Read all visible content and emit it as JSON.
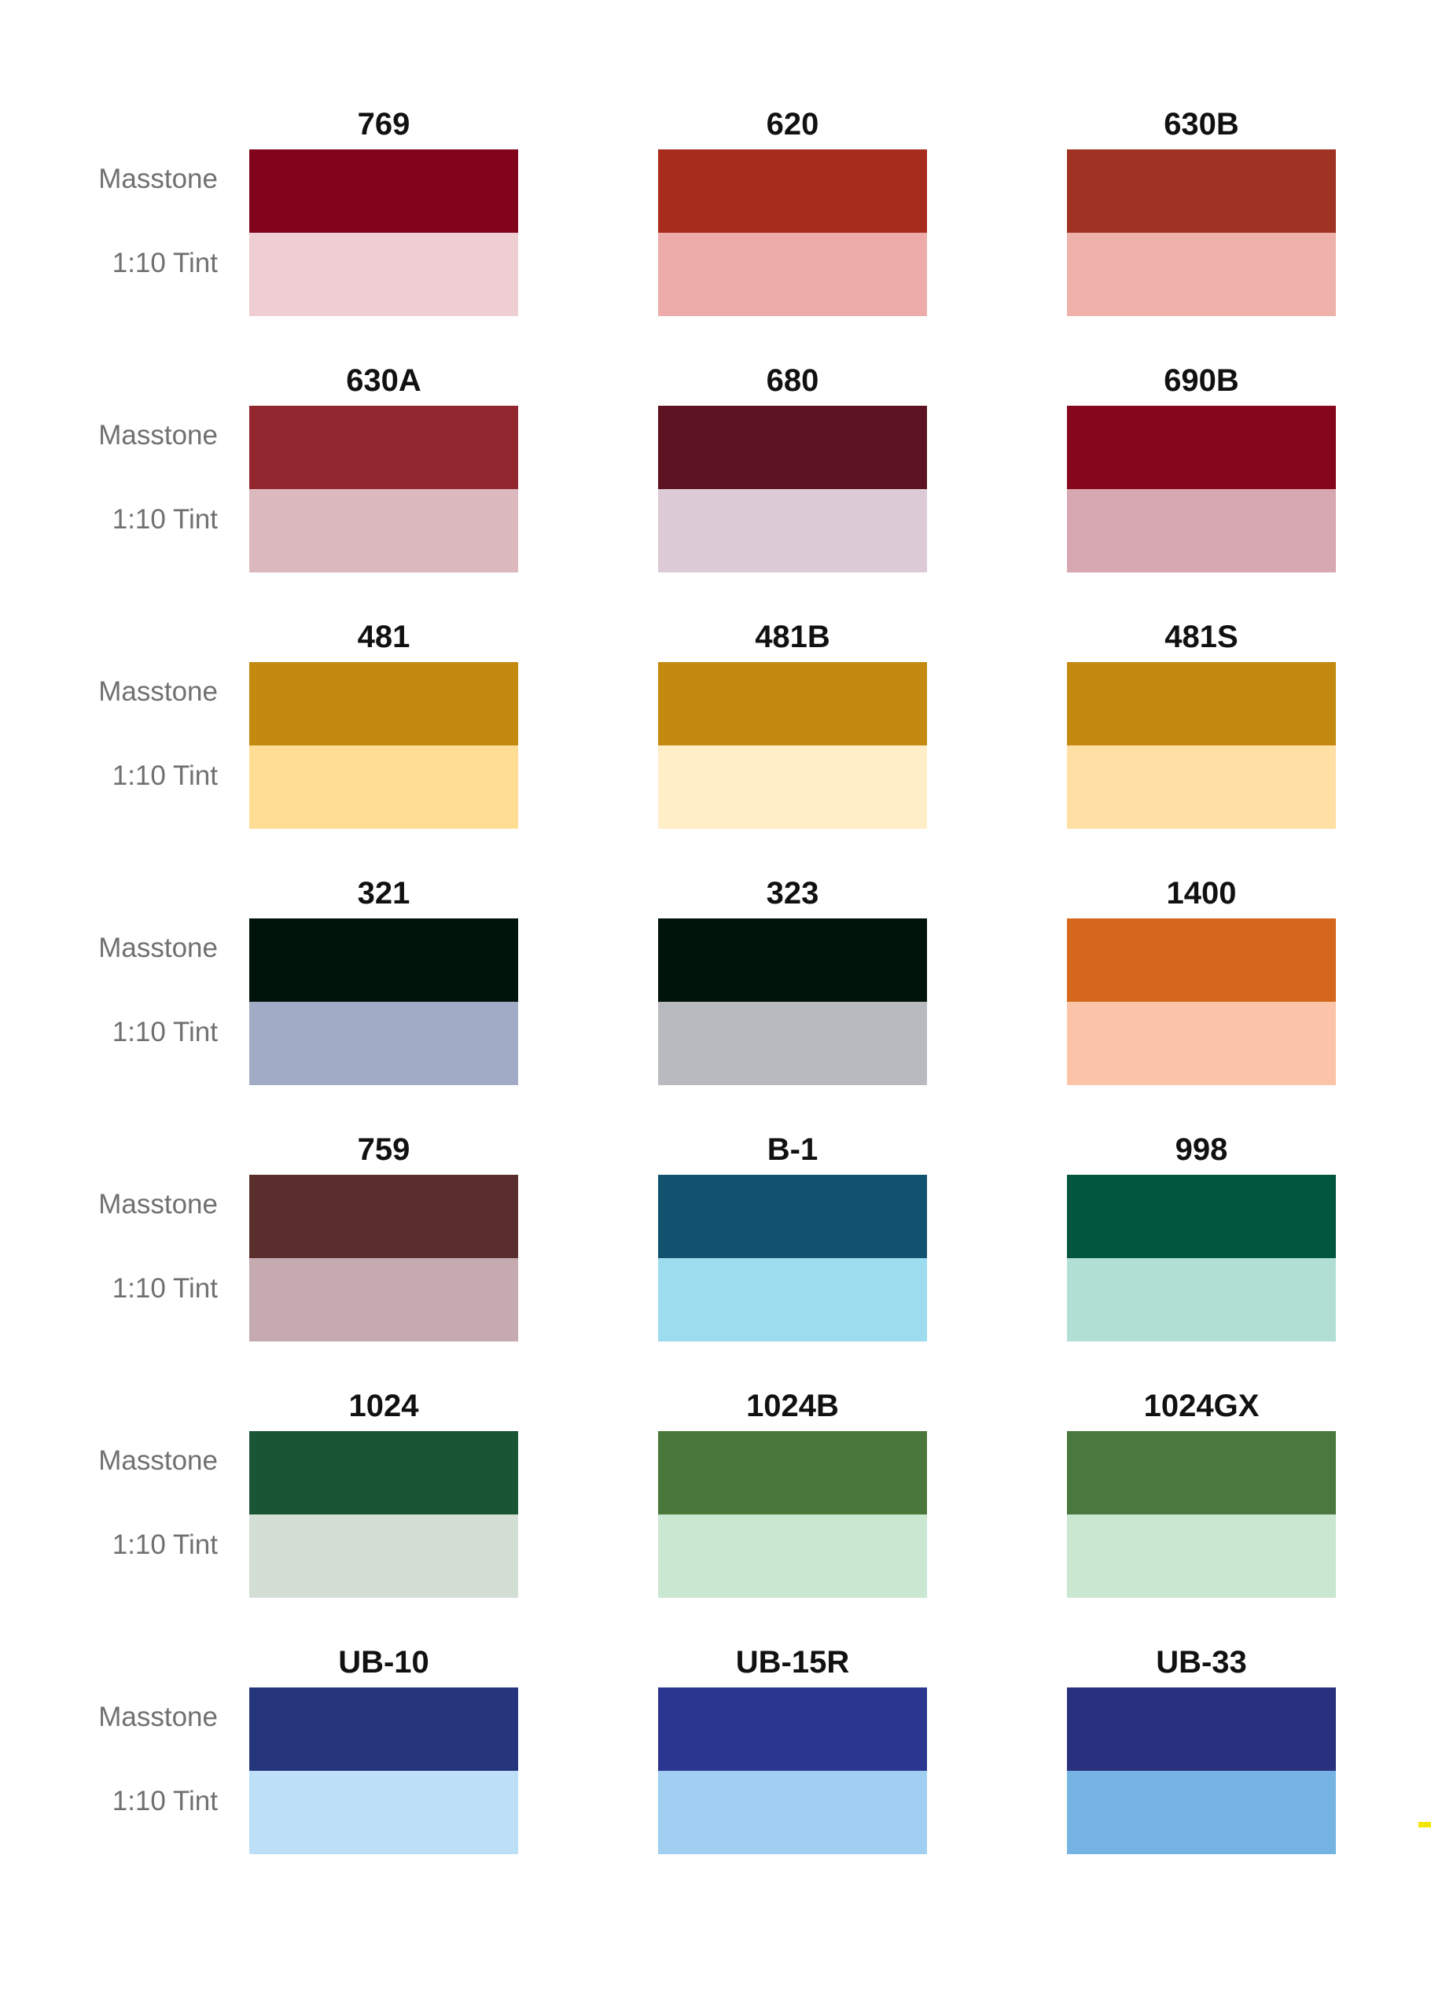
{
  "labels": {
    "masstone": "Masstone",
    "tint": "1:10 Tint"
  },
  "rows": [
    [
      {
        "name": "769",
        "masstone": "#81041c",
        "tint": "#eecdd3"
      },
      {
        "name": "620",
        "masstone": "#a82c1e",
        "tint": "#edaba9"
      },
      {
        "name": "630B",
        "masstone": "#a03224",
        "tint": "#eeb2ab"
      }
    ],
    [
      {
        "name": "630A",
        "masstone": "#92262e",
        "tint": "#dcb8bf"
      },
      {
        "name": "680",
        "masstone": "#5c1220",
        "tint": "#dccbd6"
      },
      {
        "name": "690B",
        "masstone": "#86071d",
        "tint": "#d7a8b2"
      }
    ],
    [
      {
        "name": "481",
        "masstone": "#c48a10",
        "tint": "#ffdd94"
      },
      {
        "name": "481B",
        "masstone": "#c48a10",
        "tint": "#ffeec8"
      },
      {
        "name": "481S",
        "masstone": "#c48a10",
        "tint": "#ffdfa4"
      }
    ],
    [
      {
        "name": "321",
        "masstone": "#00140c",
        "tint": "#a1abc6"
      },
      {
        "name": "323",
        "masstone": "#00140c",
        "tint": "#b8babf"
      },
      {
        "name": "1400",
        "masstone": "#d4671c",
        "tint": "#fbc4a8"
      }
    ],
    [
      {
        "name": "759",
        "masstone": "#5b2e2e",
        "tint": "#c5aab0"
      },
      {
        "name": "B-1",
        "masstone": "#11526e",
        "tint": "#9ddbef"
      },
      {
        "name": "998",
        "masstone": "#015640",
        "tint": "#b1dfd4"
      }
    ],
    [
      {
        "name": "1024",
        "masstone": "#1a5535",
        "tint": "#d3dfd5"
      },
      {
        "name": "1024B",
        "masstone": "#4a783a",
        "tint": "#c9e7d1"
      },
      {
        "name": "1024GX",
        "masstone": "#4a783e",
        "tint": "#c9e7d1"
      }
    ],
    [
      {
        "name": "UB-10",
        "masstone": "#25357b",
        "tint": "#bddff8"
      },
      {
        "name": "UB-15R",
        "masstone": "#2b3690",
        "tint": "#a0cff1"
      },
      {
        "name": "UB-33",
        "masstone": "#29307e",
        "tint": "#75b4e2"
      }
    ]
  ],
  "accent_color": "#f3e600"
}
